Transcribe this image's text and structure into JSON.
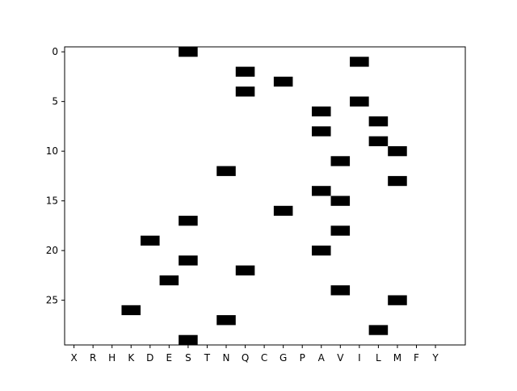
{
  "chart_data": {
    "type": "heatmap",
    "title": "",
    "xlabel": "",
    "ylabel": "",
    "categories": [
      "X",
      "R",
      "H",
      "K",
      "D",
      "E",
      "S",
      "T",
      "N",
      "Q",
      "C",
      "G",
      "P",
      "A",
      "V",
      "I",
      "L",
      "M",
      "F",
      "Y"
    ],
    "y_range": [
      -0.5,
      29.5
    ],
    "y_inverted": true,
    "y_ticks": [
      0,
      5,
      10,
      15,
      20,
      25
    ],
    "grid": false,
    "cell_color": "#000000",
    "background_color": "#ffffff",
    "points": [
      {
        "row": 0,
        "col": "S"
      },
      {
        "row": 1,
        "col": "I"
      },
      {
        "row": 2,
        "col": "Q"
      },
      {
        "row": 3,
        "col": "G"
      },
      {
        "row": 4,
        "col": "Q"
      },
      {
        "row": 5,
        "col": "I"
      },
      {
        "row": 6,
        "col": "A"
      },
      {
        "row": 7,
        "col": "L"
      },
      {
        "row": 8,
        "col": "A"
      },
      {
        "row": 9,
        "col": "L"
      },
      {
        "row": 10,
        "col": "M"
      },
      {
        "row": 11,
        "col": "V"
      },
      {
        "row": 12,
        "col": "N"
      },
      {
        "row": 13,
        "col": "M"
      },
      {
        "row": 14,
        "col": "A"
      },
      {
        "row": 15,
        "col": "V"
      },
      {
        "row": 16,
        "col": "G"
      },
      {
        "row": 17,
        "col": "S"
      },
      {
        "row": 18,
        "col": "V"
      },
      {
        "row": 19,
        "col": "D"
      },
      {
        "row": 20,
        "col": "A"
      },
      {
        "row": 21,
        "col": "S"
      },
      {
        "row": 22,
        "col": "Q"
      },
      {
        "row": 23,
        "col": "E"
      },
      {
        "row": 24,
        "col": "V"
      },
      {
        "row": 25,
        "col": "M"
      },
      {
        "row": 26,
        "col": "K"
      },
      {
        "row": 27,
        "col": "N"
      },
      {
        "row": 28,
        "col": "L"
      },
      {
        "row": 29,
        "col": "S"
      }
    ]
  }
}
